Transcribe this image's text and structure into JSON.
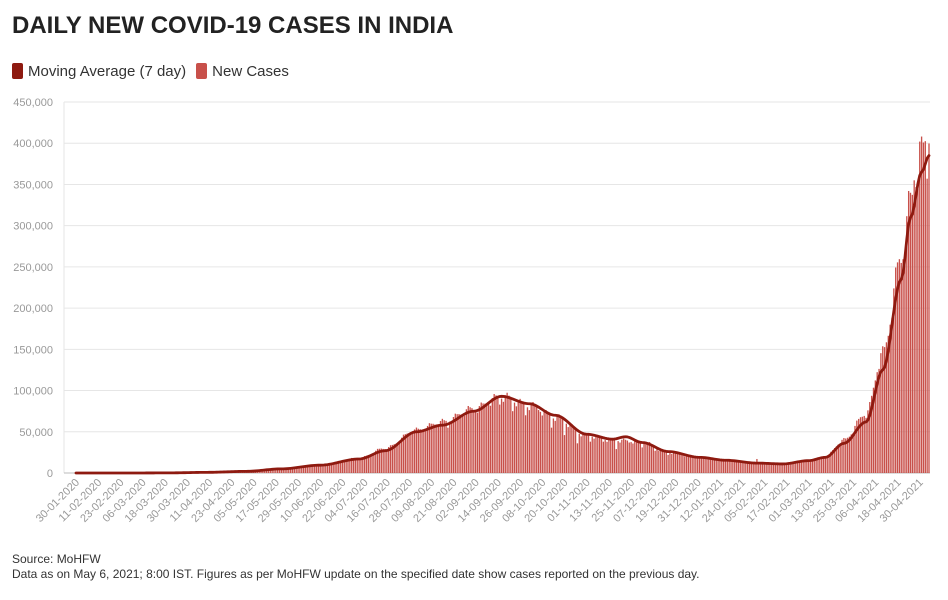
{
  "title": "DAILY NEW COVID-19 CASES IN INDIA",
  "legend": [
    {
      "label": "Moving Average (7 day)",
      "color": "#8e1a10"
    },
    {
      "label": "New Cases",
      "color": "#c8504a"
    }
  ],
  "footer": {
    "source": "Source: MoHFW",
    "note": "Data as on May 6, 2021; 8:00 IST. Figures as per MoHFW update on the specified date show cases reported on the previous day."
  },
  "chart_data": {
    "type": "bar",
    "title": "DAILY NEW COVID-19 CASES IN INDIA",
    "ylim": [
      0,
      450000
    ],
    "y_ticks": [
      0,
      50000,
      100000,
      150000,
      200000,
      250000,
      300000,
      350000,
      400000,
      450000
    ],
    "y_tick_labels": [
      "0",
      "50,000",
      "100,000",
      "150,000",
      "200,000",
      "250,000",
      "300,000",
      "350,000",
      "400,000",
      "450,000"
    ],
    "x_range": [
      "2020-01-30",
      "2021-05-05"
    ],
    "x_tick_labels": [
      "30-01-2020",
      "11-02-2020",
      "23-02-2020",
      "06-03-2020",
      "18-03-2020",
      "30-03-2020",
      "11-04-2020",
      "23-04-2020",
      "05-05-2020",
      "17-05-2020",
      "29-05-2020",
      "10-06-2020",
      "22-06-2020",
      "04-07-2020",
      "16-07-2020",
      "28-07-2020",
      "09-08-2020",
      "21-08-2020",
      "02-09-2020",
      "14-09-2020",
      "26-09-2020",
      "08-10-2020",
      "20-10-2020",
      "01-11-2020",
      "13-11-2020",
      "25-11-2020",
      "07-12-2020",
      "19-12-2020",
      "31-12-2020",
      "12-01-2021",
      "24-01-2021",
      "05-02-2021",
      "17-02-2021",
      "01-03-2021",
      "13-03-2021",
      "25-03-2021",
      "06-04-2021",
      "18-04-2021",
      "30-04-2021"
    ],
    "grid": true,
    "legend_position": "top-left",
    "series": [
      {
        "name": "New Cases",
        "kind": "bar",
        "color": "#c8504a",
        "anchors": [
          [
            "2020-01-30",
            0
          ],
          [
            "2020-03-01",
            0
          ],
          [
            "2020-03-20",
            150
          ],
          [
            "2020-04-10",
            800
          ],
          [
            "2020-05-01",
            2000
          ],
          [
            "2020-05-20",
            5000
          ],
          [
            "2020-06-10",
            10000
          ],
          [
            "2020-07-01",
            18000
          ],
          [
            "2020-07-15",
            30000
          ],
          [
            "2020-08-01",
            52000
          ],
          [
            "2020-08-15",
            62000
          ],
          [
            "2020-09-01",
            78000
          ],
          [
            "2020-09-16",
            93000
          ],
          [
            "2020-10-01",
            82000
          ],
          [
            "2020-10-15",
            68000
          ],
          [
            "2020-11-01",
            46000
          ],
          [
            "2020-11-15",
            40000
          ],
          [
            "2020-12-01",
            38000
          ],
          [
            "2020-12-15",
            25000
          ],
          [
            "2021-01-01",
            19000
          ],
          [
            "2021-01-15",
            15000
          ],
          [
            "2021-02-01",
            11500
          ],
          [
            "2021-02-15",
            11000
          ],
          [
            "2021-03-01",
            15000
          ],
          [
            "2021-03-10",
            20000
          ],
          [
            "2021-03-20",
            40000
          ],
          [
            "2021-04-01",
            72000
          ],
          [
            "2021-04-10",
            145000
          ],
          [
            "2021-04-20",
            260000
          ],
          [
            "2021-04-25",
            330000
          ],
          [
            "2021-05-01",
            385000
          ],
          [
            "2021-05-05",
            412000
          ]
        ]
      },
      {
        "name": "Moving Average (7 day)",
        "kind": "line",
        "color": "#8e1a10",
        "anchors": [
          [
            "2020-01-30",
            0
          ],
          [
            "2020-03-01",
            0
          ],
          [
            "2020-03-20",
            150
          ],
          [
            "2020-04-10",
            800
          ],
          [
            "2020-05-01",
            2000
          ],
          [
            "2020-05-20",
            5000
          ],
          [
            "2020-06-10",
            9500
          ],
          [
            "2020-07-01",
            17000
          ],
          [
            "2020-07-15",
            27000
          ],
          [
            "2020-08-01",
            50000
          ],
          [
            "2020-08-15",
            58000
          ],
          [
            "2020-09-01",
            75000
          ],
          [
            "2020-09-16",
            93000
          ],
          [
            "2020-10-01",
            84000
          ],
          [
            "2020-10-15",
            70000
          ],
          [
            "2020-11-01",
            47000
          ],
          [
            "2020-11-15",
            41000
          ],
          [
            "2020-11-22",
            44000
          ],
          [
            "2020-12-01",
            37000
          ],
          [
            "2020-12-15",
            26000
          ],
          [
            "2021-01-01",
            19000
          ],
          [
            "2021-01-15",
            15500
          ],
          [
            "2021-02-01",
            12000
          ],
          [
            "2021-02-15",
            11000
          ],
          [
            "2021-03-01",
            15000
          ],
          [
            "2021-03-10",
            19000
          ],
          [
            "2021-03-20",
            36000
          ],
          [
            "2021-04-01",
            62000
          ],
          [
            "2021-04-10",
            125000
          ],
          [
            "2021-04-20",
            235000
          ],
          [
            "2021-04-25",
            310000
          ],
          [
            "2021-05-01",
            365000
          ],
          [
            "2021-05-05",
            385000
          ]
        ]
      }
    ],
    "bar_dips": [
      [
        "2020-08-18",
        55000
      ],
      [
        "2020-09-15",
        83000
      ],
      [
        "2020-09-22",
        75000
      ],
      [
        "2020-09-29",
        70000
      ],
      [
        "2020-10-13",
        55000
      ],
      [
        "2020-10-20",
        46000
      ],
      [
        "2020-10-27",
        36000
      ],
      [
        "2020-11-03",
        38000
      ],
      [
        "2020-11-10",
        38000
      ],
      [
        "2020-11-17",
        29000
      ],
      [
        "2020-11-24",
        37000
      ],
      [
        "2020-12-01",
        31000
      ],
      [
        "2020-12-08",
        27000
      ],
      [
        "2020-12-15",
        22000
      ],
      [
        "2021-04-27",
        355000
      ],
      [
        "2021-05-04",
        357000
      ]
    ],
    "bar_spikes": [
      [
        "2021-02-01",
        17000
      ],
      [
        "2021-04-30",
        402000
      ]
    ]
  }
}
